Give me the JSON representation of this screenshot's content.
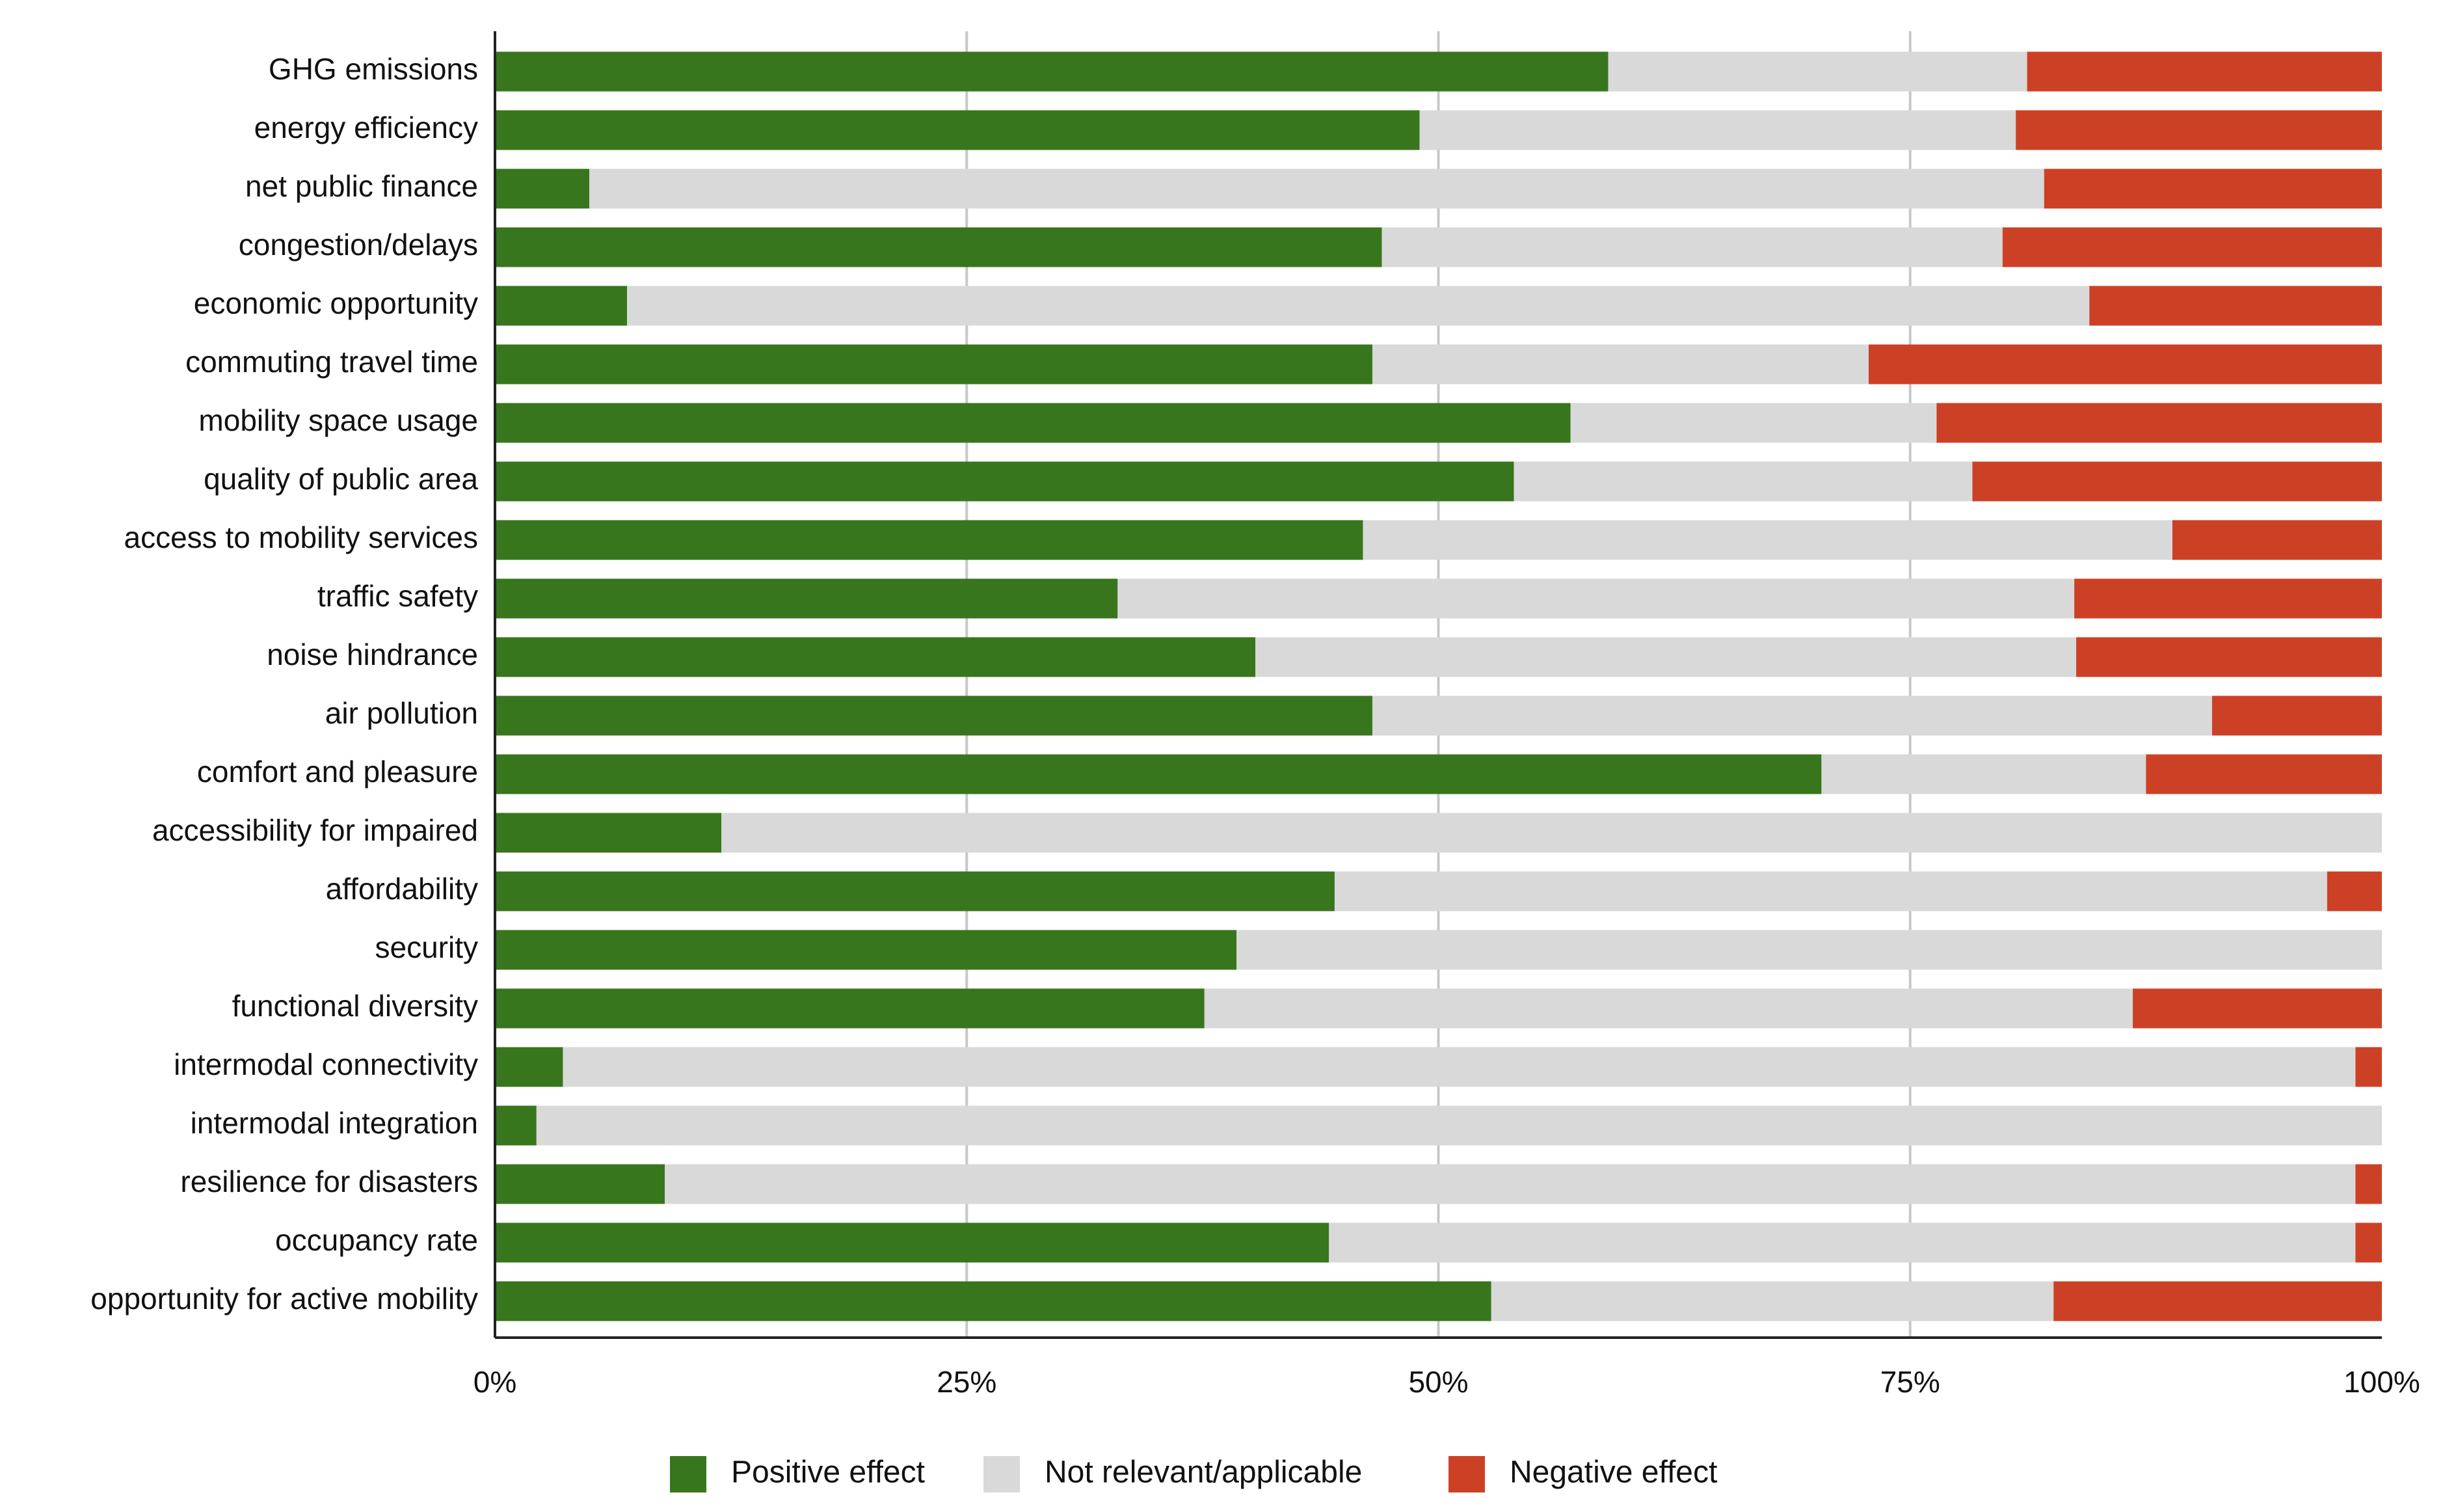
{
  "chart_data": {
    "type": "bar",
    "orientation": "horizontal",
    "stacked": true,
    "percent": true,
    "title": "",
    "xlabel": "",
    "ylabel": "",
    "xlim": [
      0,
      100
    ],
    "x_ticks": [
      "0%",
      "25%",
      "50%",
      "75%",
      "100%"
    ],
    "grid": "vertical",
    "legend_position": "bottom",
    "categories": [
      "GHG emissions",
      "energy efficiency",
      "net public finance",
      "congestion/delays",
      "economic opportunity",
      "commuting travel time",
      "mobility space usage",
      "quality of public area",
      "access to mobility services",
      "traffic safety",
      "noise hindrance",
      "air pollution",
      "comfort and pleasure",
      "accessibility for impaired",
      "affordability",
      "security",
      "functional diversity",
      "intermodal connectivity",
      "intermodal integration",
      "resilience for disasters",
      "occupancy rate",
      "opportunity for active mobility"
    ],
    "series": [
      {
        "name": "Positive effect",
        "color": "#38761d",
        "values": [
          59,
          49,
          5,
          47,
          7,
          46.5,
          57,
          54,
          46,
          33,
          40.3,
          46.5,
          70.3,
          12,
          44.5,
          39.3,
          37.6,
          3.6,
          2.2,
          9,
          44.2,
          52.8
        ]
      },
      {
        "name": "Not relevant/applicable",
        "color": "#d9d9d9",
        "values": [
          22.2,
          31.6,
          77.1,
          32.9,
          77.5,
          26.3,
          19.4,
          24.3,
          42.9,
          50.7,
          43.5,
          44.5,
          17.2,
          88,
          52.6,
          60.7,
          49.2,
          95,
          97.8,
          89.6,
          54.4,
          29.8
        ]
      },
      {
        "name": "Negative effect",
        "color": "#cc4125",
        "values": [
          18.8,
          19.4,
          17.9,
          20.1,
          15.5,
          27.2,
          23.6,
          21.7,
          11.1,
          16.3,
          16.2,
          9,
          12.5,
          0,
          2.9,
          0,
          13.2,
          1.4,
          0,
          1.4,
          1.4,
          17.4
        ]
      }
    ]
  }
}
